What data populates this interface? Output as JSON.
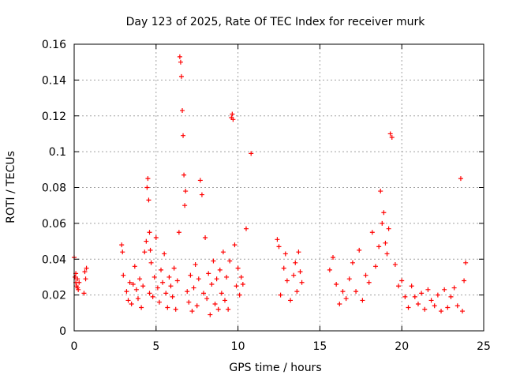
{
  "chart_data": {
    "type": "scatter",
    "title": "Day 123 of 2025, Rate Of TEC Index for receiver murk",
    "xlabel": "GPS time / hours",
    "ylabel": "ROTI / TECUs",
    "xlim": [
      0,
      25
    ],
    "ylim": [
      0,
      0.16
    ],
    "x_ticks": [
      "0",
      "5",
      "10",
      "15",
      "20",
      "25"
    ],
    "y_ticks": [
      "0",
      "0.02",
      "0.04",
      "0.06",
      "0.08",
      "0.1",
      "0.12",
      "0.14",
      "0.16"
    ],
    "grid": true,
    "marker": "+",
    "color": "#ff0000",
    "series": [
      {
        "x": [
          0.0,
          0.05,
          0.1,
          0.15,
          0.2,
          0.25,
          0.3,
          0.1,
          0.2,
          0.6,
          0.65,
          0.7,
          0.75,
          2.9,
          2.95,
          3.0,
          3.2,
          3.3,
          3.4,
          3.5,
          3.6,
          3.7,
          3.8,
          3.9,
          4.0,
          4.1,
          4.2,
          4.3,
          4.4,
          4.45,
          4.5,
          4.55,
          4.6,
          4.6,
          4.65,
          4.7,
          4.8,
          4.9,
          5.0,
          5.1,
          5.2,
          5.3,
          5.4,
          5.5,
          5.6,
          5.7,
          5.8,
          5.9,
          6.0,
          6.1,
          6.2,
          6.3,
          6.4,
          6.45,
          6.5,
          6.55,
          6.6,
          6.65,
          6.7,
          6.75,
          6.8,
          6.9,
          7.0,
          7.1,
          7.2,
          7.3,
          7.4,
          7.5,
          7.6,
          7.7,
          7.8,
          7.9,
          8.0,
          8.1,
          8.2,
          8.3,
          8.4,
          8.5,
          8.6,
          8.7,
          8.8,
          8.9,
          9.0,
          9.1,
          9.2,
          9.3,
          9.4,
          9.5,
          9.6,
          9.65,
          9.7,
          9.8,
          9.9,
          10.0,
          10.1,
          10.2,
          10.3,
          10.5,
          10.8,
          12.4,
          12.5,
          12.6,
          12.8,
          12.9,
          13.0,
          13.2,
          13.4,
          13.5,
          13.6,
          13.7,
          13.8,
          13.9,
          15.6,
          15.8,
          16.0,
          16.2,
          16.4,
          16.6,
          16.8,
          17.0,
          17.2,
          17.4,
          17.6,
          17.8,
          18.0,
          18.2,
          18.4,
          18.6,
          18.7,
          18.8,
          18.9,
          19.0,
          19.1,
          19.2,
          19.3,
          19.4,
          19.6,
          19.8,
          20.0,
          20.2,
          20.4,
          20.6,
          20.8,
          21.0,
          21.2,
          21.4,
          21.6,
          21.8,
          22.0,
          22.2,
          22.4,
          22.6,
          22.8,
          23.0,
          23.2,
          23.4,
          23.6,
          23.7,
          23.8,
          23.9
        ],
        "y": [
          0.041,
          0.03,
          0.027,
          0.025,
          0.029,
          0.023,
          0.027,
          0.032,
          0.024,
          0.021,
          0.033,
          0.029,
          0.035,
          0.048,
          0.044,
          0.031,
          0.022,
          0.017,
          0.027,
          0.015,
          0.026,
          0.036,
          0.023,
          0.018,
          0.029,
          0.013,
          0.025,
          0.044,
          0.05,
          0.08,
          0.085,
          0.073,
          0.055,
          0.021,
          0.045,
          0.038,
          0.019,
          0.03,
          0.052,
          0.024,
          0.016,
          0.034,
          0.027,
          0.043,
          0.021,
          0.013,
          0.03,
          0.025,
          0.019,
          0.035,
          0.012,
          0.028,
          0.055,
          0.153,
          0.15,
          0.142,
          0.123,
          0.109,
          0.087,
          0.07,
          0.078,
          0.022,
          0.016,
          0.031,
          0.011,
          0.024,
          0.037,
          0.014,
          0.029,
          0.084,
          0.076,
          0.021,
          0.052,
          0.018,
          0.032,
          0.009,
          0.026,
          0.039,
          0.015,
          0.029,
          0.012,
          0.034,
          0.021,
          0.044,
          0.017,
          0.03,
          0.012,
          0.039,
          0.119,
          0.121,
          0.118,
          0.048,
          0.025,
          0.035,
          0.02,
          0.03,
          0.026,
          0.057,
          0.099,
          0.051,
          0.047,
          0.02,
          0.035,
          0.043,
          0.028,
          0.017,
          0.031,
          0.038,
          0.022,
          0.044,
          0.033,
          0.027,
          0.034,
          0.041,
          0.026,
          0.015,
          0.022,
          0.018,
          0.029,
          0.038,
          0.022,
          0.045,
          0.017,
          0.031,
          0.027,
          0.055,
          0.036,
          0.047,
          0.078,
          0.06,
          0.066,
          0.049,
          0.043,
          0.057,
          0.11,
          0.108,
          0.037,
          0.025,
          0.028,
          0.019,
          0.013,
          0.025,
          0.019,
          0.015,
          0.021,
          0.012,
          0.023,
          0.017,
          0.014,
          0.02,
          0.011,
          0.023,
          0.013,
          0.019,
          0.024,
          0.014,
          0.085,
          0.011,
          0.028,
          0.038
        ]
      }
    ]
  }
}
